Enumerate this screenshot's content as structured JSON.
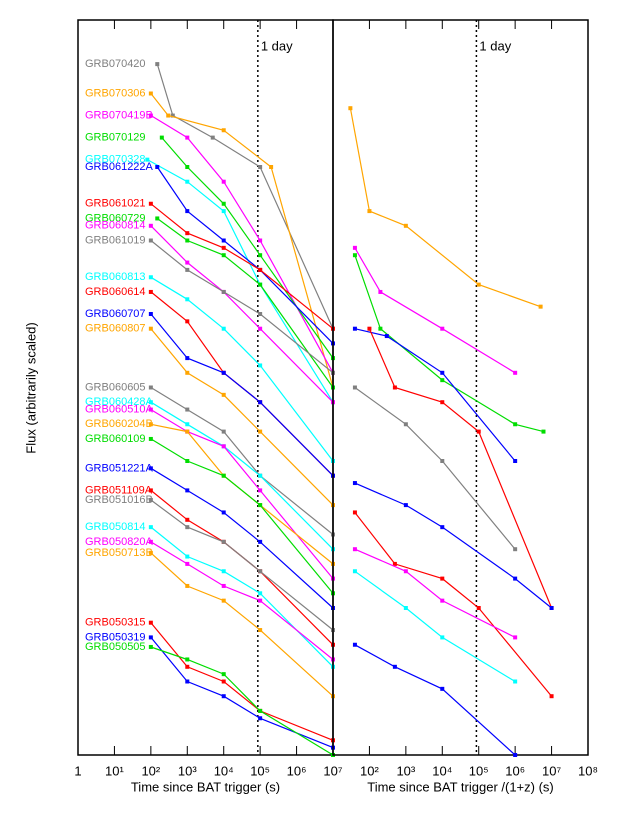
{
  "chart_data": [
    {
      "type": "line",
      "xlabel": "Time since BAT trigger  (s)",
      "ylabel": "Flux (arbitrarily scaled)",
      "annotation": "1 day",
      "vline": 86400,
      "xscale": "log",
      "xlim": [
        1,
        10000000
      ],
      "ylim": [
        0,
        100
      ],
      "xticks": [
        1,
        {
          "value": 10,
          "label": "10¹"
        },
        {
          "value": 100,
          "label": "10²"
        },
        {
          "value": 1000,
          "label": "10³"
        },
        {
          "value": 10000,
          "label": "10⁴"
        },
        {
          "value": 100000,
          "label": "10⁵"
        },
        {
          "value": 1000000,
          "label": "10⁶"
        },
        {
          "value": 10000000,
          "label": "10⁷"
        }
      ],
      "series": [
        {
          "name": "GRB070420",
          "color": "#808080",
          "x": [
            150,
            400,
            5000,
            100000,
            10000000
          ],
          "values": [
            94,
            87,
            84,
            80,
            58
          ]
        },
        {
          "name": "GRB070306",
          "color": "#ffa500",
          "x": [
            100,
            300,
            10000,
            200000,
            10000000
          ],
          "values": [
            90,
            87,
            85,
            80,
            50
          ]
        },
        {
          "name": "GRB070419B",
          "color": "#ff00ff",
          "x": [
            100,
            1000,
            10000,
            100000,
            10000000
          ],
          "values": [
            87,
            84,
            78,
            70,
            52
          ]
        },
        {
          "name": "GRB070129",
          "color": "#00dd00",
          "x": [
            200,
            1000,
            10000,
            100000,
            10000000
          ],
          "values": [
            84,
            80,
            75,
            68,
            54
          ]
        },
        {
          "name": "GRB070328",
          "color": "#00ffff",
          "x": [
            80,
            1000,
            10000,
            100000,
            10000000
          ],
          "values": [
            81,
            78,
            74,
            64,
            48
          ]
        },
        {
          "name": "GRB061222A",
          "color": "#0000ff",
          "x": [
            150,
            1000,
            10000,
            100000,
            10000000
          ],
          "values": [
            80,
            74,
            70,
            66,
            56
          ]
        },
        {
          "name": "GRB061021",
          "color": "#ff0000",
          "x": [
            100,
            1000,
            10000,
            100000,
            10000000
          ],
          "values": [
            75,
            71,
            69,
            66,
            58
          ]
        },
        {
          "name": "GRB060729",
          "color": "#00dd00",
          "x": [
            150,
            1000,
            10000,
            100000,
            10000000
          ],
          "values": [
            73,
            70,
            68,
            64,
            50
          ]
        },
        {
          "name": "GRB060814",
          "color": "#ff00ff",
          "x": [
            100,
            1000,
            10000,
            100000,
            10000000
          ],
          "values": [
            72,
            67,
            63,
            58,
            48
          ]
        },
        {
          "name": "GRB061019",
          "color": "#808080",
          "x": [
            100,
            1000,
            10000,
            100000,
            10000000
          ],
          "values": [
            70,
            66,
            63,
            60,
            52
          ]
        },
        {
          "name": "GRB060813",
          "color": "#00ffff",
          "x": [
            100,
            1000,
            10000,
            100000,
            10000000
          ],
          "values": [
            65,
            62,
            58,
            53,
            40
          ]
        },
        {
          "name": "GRB060614",
          "color": "#ff0000",
          "x": [
            100,
            1000,
            10000,
            100000,
            10000000
          ],
          "values": [
            63,
            59,
            52,
            48,
            38
          ]
        },
        {
          "name": "GRB060707",
          "color": "#0000ff",
          "x": [
            100,
            1000,
            10000,
            100000,
            10000000
          ],
          "values": [
            60,
            54,
            52,
            48,
            38
          ]
        },
        {
          "name": "GRB060807",
          "color": "#ffa500",
          "x": [
            100,
            1000,
            10000,
            100000,
            10000000
          ],
          "values": [
            58,
            52,
            49,
            44,
            34
          ]
        },
        {
          "name": "GRB060605",
          "color": "#808080",
          "x": [
            100,
            1000,
            10000,
            100000,
            10000000
          ],
          "values": [
            50,
            47,
            44,
            38,
            30
          ]
        },
        {
          "name": "GRB060428A",
          "color": "#00ffff",
          "x": [
            100,
            1000,
            10000,
            100000,
            10000000
          ],
          "values": [
            48,
            45,
            42,
            38,
            28
          ]
        },
        {
          "name": "GRB060510A",
          "color": "#ff00ff",
          "x": [
            100,
            1000,
            10000,
            100000,
            10000000
          ],
          "values": [
            47,
            44,
            42,
            36,
            24
          ]
        },
        {
          "name": "GRB060204B",
          "color": "#ffa500",
          "x": [
            100,
            1000,
            10000,
            100000,
            10000000
          ],
          "values": [
            45,
            44,
            38,
            34,
            26
          ]
        },
        {
          "name": "GRB060109",
          "color": "#00dd00",
          "x": [
            100,
            1000,
            10000,
            100000,
            10000000
          ],
          "values": [
            43,
            40,
            38,
            34,
            22
          ]
        },
        {
          "name": "GRB051221A",
          "color": "#0000ff",
          "x": [
            100,
            1000,
            10000,
            100000,
            10000000
          ],
          "values": [
            39,
            36,
            33,
            29,
            20
          ]
        },
        {
          "name": "GRB051109A",
          "color": "#ff0000",
          "x": [
            100,
            1000,
            10000,
            100000,
            10000000
          ],
          "values": [
            36,
            32,
            29,
            25,
            15
          ]
        },
        {
          "name": "GRB051016B",
          "color": "#808080",
          "x": [
            100,
            1000,
            10000,
            100000,
            10000000
          ],
          "values": [
            34.7,
            31,
            29,
            25,
            17
          ]
        },
        {
          "name": "GRB050814",
          "color": "#00ffff",
          "x": [
            100,
            1000,
            10000,
            100000,
            10000000
          ],
          "values": [
            31,
            27,
            25,
            22,
            12
          ]
        },
        {
          "name": "GRB050820A",
          "color": "#ff00ff",
          "x": [
            100,
            1000,
            10000,
            100000,
            10000000
          ],
          "values": [
            29,
            26,
            23,
            21,
            13
          ]
        },
        {
          "name": "GRB050713B",
          "color": "#ffa500",
          "x": [
            100,
            1000,
            10000,
            100000,
            10000000
          ],
          "values": [
            27.5,
            23,
            21,
            17,
            8
          ]
        },
        {
          "name": "GRB050315",
          "color": "#ff0000",
          "x": [
            100,
            1000,
            10000,
            100000,
            10000000
          ],
          "values": [
            18,
            12,
            10,
            6,
            2
          ]
        },
        {
          "name": "GRB050319",
          "color": "#0000ff",
          "x": [
            100,
            1000,
            10000,
            100000,
            10000000
          ],
          "values": [
            16,
            10,
            8,
            5,
            1
          ]
        },
        {
          "name": "GRB050505",
          "color": "#00dd00",
          "x": [
            100,
            1000,
            10000,
            100000,
            10000000
          ],
          "values": [
            14.7,
            13,
            11,
            6,
            0
          ]
        }
      ]
    },
    {
      "type": "line",
      "xlabel": "Time since BAT trigger /(1+z) (s)",
      "annotation": "1 day",
      "vline": 86400,
      "xscale": "log",
      "xlim": [
        10,
        100000000
      ],
      "ylim": [
        0,
        100
      ],
      "xticks": [
        {
          "value": 100,
          "label": "10²"
        },
        {
          "value": 1000,
          "label": "10³"
        },
        {
          "value": 10000,
          "label": "10⁴"
        },
        {
          "value": 100000,
          "label": "10⁵"
        },
        {
          "value": 1000000,
          "label": "10⁶"
        },
        {
          "value": 10000000,
          "label": "10⁷"
        },
        {
          "value": 100000000,
          "label": "10⁸"
        }
      ],
      "series": [
        {
          "color": "#ffa500",
          "x": [
            30,
            100,
            1000,
            100000,
            5000000
          ],
          "values": [
            88,
            74,
            72,
            64,
            61
          ]
        },
        {
          "color": "#ff00ff",
          "x": [
            40,
            200,
            10000,
            1000000
          ],
          "values": [
            69,
            63,
            58,
            52
          ]
        },
        {
          "color": "#00dd00",
          "x": [
            40,
            200,
            10000,
            1000000,
            6000000
          ],
          "values": [
            68,
            58,
            51,
            45,
            44
          ]
        },
        {
          "color": "#0000ff",
          "x": [
            40,
            300,
            10000,
            1000000
          ],
          "values": [
            58,
            57,
            52,
            40
          ]
        },
        {
          "color": "#ff0000",
          "x": [
            100,
            500,
            10000,
            100000,
            10000000
          ],
          "values": [
            58,
            50,
            48,
            44,
            20
          ]
        },
        {
          "color": "#808080",
          "x": [
            40,
            1000,
            10000,
            1000000
          ],
          "values": [
            50,
            45,
            40,
            28
          ]
        },
        {
          "color": "#0000ff",
          "x": [
            40,
            1000,
            10000,
            1000000,
            10000000
          ],
          "values": [
            37,
            34,
            31,
            24,
            20
          ]
        },
        {
          "color": "#ff0000",
          "x": [
            40,
            500,
            10000,
            100000,
            10000000
          ],
          "values": [
            33,
            26,
            24,
            20,
            8
          ]
        },
        {
          "color": "#ff00ff",
          "x": [
            40,
            1000,
            10000,
            1000000
          ],
          "values": [
            28,
            25,
            21,
            16
          ]
        },
        {
          "color": "#00ffff",
          "x": [
            40,
            1000,
            10000,
            1000000
          ],
          "values": [
            25,
            20,
            16,
            10
          ]
        },
        {
          "color": "#0000ff",
          "x": [
            40,
            500,
            10000,
            1000000
          ],
          "values": [
            15,
            12,
            9,
            0
          ]
        }
      ]
    }
  ]
}
